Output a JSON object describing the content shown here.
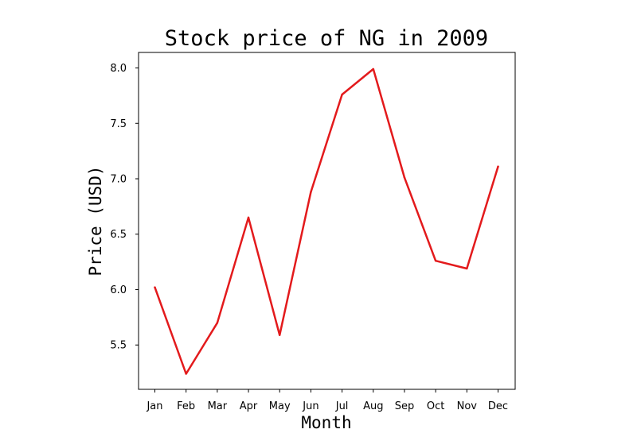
{
  "chart_data": {
    "type": "line",
    "title": "Stock price of NG in 2009",
    "xlabel": "Month",
    "ylabel": "Price (USD)",
    "categories": [
      "Jan",
      "Feb",
      "Mar",
      "Apr",
      "May",
      "Jun",
      "Jul",
      "Aug",
      "Sep",
      "Oct",
      "Nov",
      "Dec"
    ],
    "series": [
      {
        "values": [
          6.02,
          5.24,
          5.7,
          6.65,
          5.59,
          6.88,
          7.76,
          7.99,
          7.01,
          6.26,
          6.19,
          7.11
        ],
        "color": "#e31a1c"
      }
    ],
    "yticks": [
      5.5,
      6.0,
      6.5,
      7.0,
      7.5,
      8.0
    ],
    "ytick_labels": [
      "5.5",
      "6.0",
      "6.5",
      "7.0",
      "7.5",
      "8.0"
    ],
    "ylim": [
      5.1,
      8.14
    ],
    "grid": false,
    "legend": "none"
  }
}
